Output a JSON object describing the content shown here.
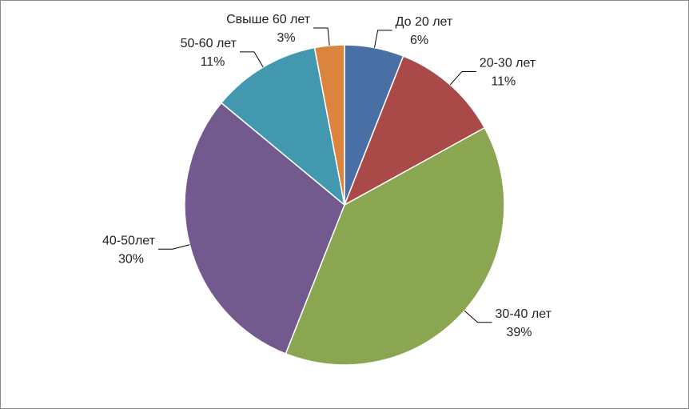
{
  "chart_data": {
    "type": "pie",
    "categories": [
      "До 20 лет",
      "20-30 лет",
      "30-40 лет",
      "40-50лет",
      "50-60 лет",
      "Свыше 60 лет"
    ],
    "values": [
      6,
      11,
      39,
      30,
      11,
      3
    ],
    "value_labels": [
      "6%",
      "11%",
      "39%",
      "30%",
      "11%",
      "3%"
    ],
    "colors": [
      "#4a6fa5",
      "#a94a48",
      "#8aa650",
      "#725a8e",
      "#4299af",
      "#db843d"
    ]
  }
}
